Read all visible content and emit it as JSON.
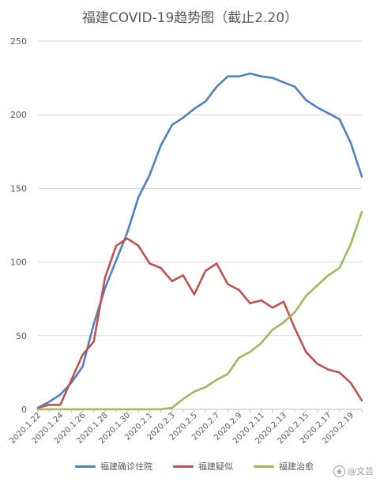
{
  "chart_data": {
    "type": "line",
    "title": "福建COVID-19趋势图（截止2.20）",
    "x": [
      "2020.1.22",
      "2020.1.23",
      "2020.1.24",
      "2020.1.25",
      "2020.1.26",
      "2020.1.27",
      "2020.1.28",
      "2020.1.29",
      "2020.1.30",
      "2020.1.31",
      "2020.2.1",
      "2020.2.2",
      "2020.2.3",
      "2020.2.4",
      "2020.2.5",
      "2020.2.6",
      "2020.2.7",
      "2020.2.8",
      "2020.2.9",
      "2020.2.10",
      "2020.2.11",
      "2020.2.12",
      "2020.2.13",
      "2020.2.14",
      "2020.2.15",
      "2020.2.16",
      "2020.2.17",
      "2020.2.18",
      "2020.2.19",
      "2020.2.20"
    ],
    "x_tick_labels": [
      "2020.1.22",
      "2020.1.24",
      "2020.1.26",
      "2020.1.28",
      "2020.1.30",
      "2020.2.1",
      "2020.2.3",
      "2020.2.5",
      "2020.2.7",
      "2020.2.9",
      "2020.2.11",
      "2020.2.13",
      "2020.2.15",
      "2020.2.17",
      "2020.2.19"
    ],
    "ylim": [
      0,
      250
    ],
    "yticks": [
      0,
      50,
      100,
      150,
      200,
      250
    ],
    "series": [
      {
        "name": "福建确诊住院",
        "color": "#4f81bd",
        "values": [
          1,
          5,
          10,
          18,
          29,
          58,
          82,
          101,
          120,
          144,
          159,
          179,
          193,
          198,
          204,
          209,
          219,
          226,
          226,
          228,
          226,
          225,
          222,
          219,
          210,
          205,
          201,
          197,
          181,
          158
        ]
      },
      {
        "name": "福建疑似",
        "color": "#c0504d",
        "values": [
          1,
          3,
          3,
          20,
          37,
          46,
          89,
          111,
          116,
          111,
          99,
          96,
          87,
          91,
          78,
          94,
          99,
          85,
          81,
          72,
          74,
          69,
          73,
          55,
          39,
          31,
          27,
          25,
          18,
          6
        ]
      },
      {
        "name": "福建治愈",
        "color": "#9bbb59",
        "values": [
          0,
          0,
          0,
          0,
          0,
          0,
          0,
          0,
          0,
          0,
          0,
          0,
          1,
          7,
          12,
          15,
          20,
          24,
          35,
          39,
          45,
          54,
          59,
          66,
          77,
          84,
          91,
          96,
          112,
          134
        ]
      }
    ]
  },
  "watermark": {
    "icon": "weibo-icon",
    "text": "@文芸"
  }
}
